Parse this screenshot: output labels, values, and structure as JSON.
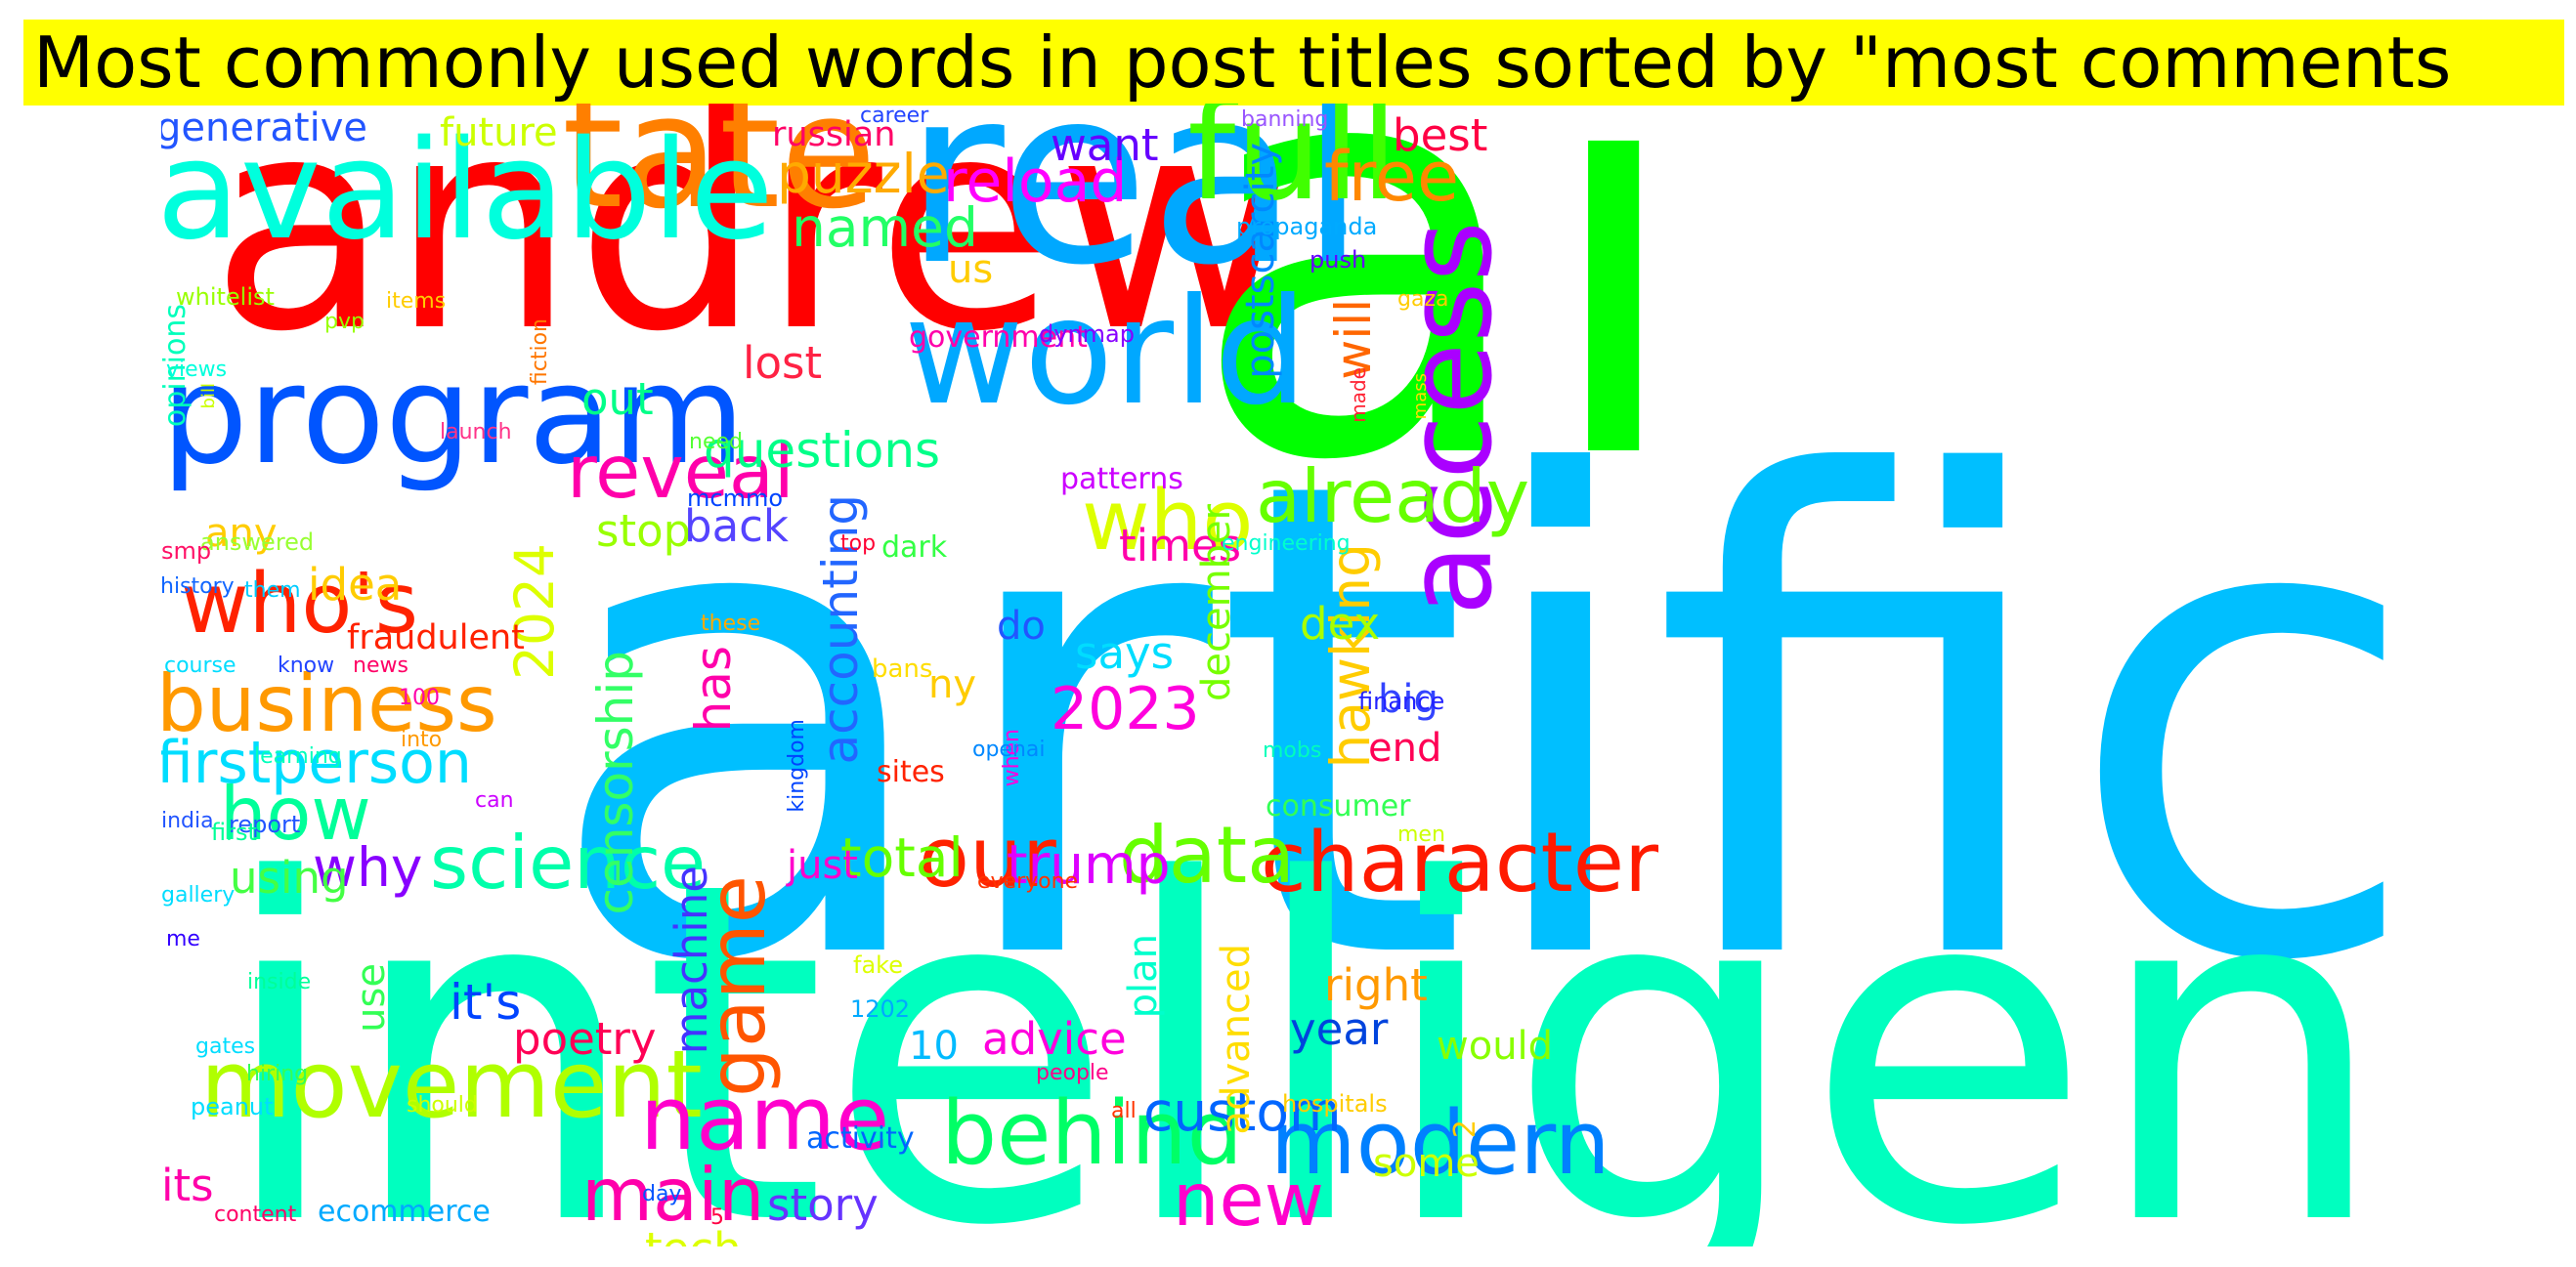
{
  "title": "Most commonly used words in post titles sorted by \"most comments",
  "colors": {
    "title_background": "#ffff00",
    "title_text": "#000000",
    "background": "#ffffff"
  },
  "words": [
    {
      "text": "artificial",
      "color": "#00bfff"
    },
    {
      "text": "intelligence",
      "color": "#00ffbf"
    },
    {
      "text": "andrew",
      "color": "#ff0000"
    },
    {
      "text": "ai",
      "color": "#00ff00"
    },
    {
      "text": "real",
      "color": "#00a8ff"
    },
    {
      "text": "tate",
      "color": "#ff7f00"
    },
    {
      "text": "world",
      "color": "#00a8ff"
    },
    {
      "text": "available",
      "color": "#00ffdd"
    },
    {
      "text": "full",
      "color": "#40ff00"
    },
    {
      "text": "program",
      "color": "#0055ff"
    },
    {
      "text": "access",
      "color": "#aa00ff"
    },
    {
      "text": "movement",
      "color": "#b0ff00"
    },
    {
      "text": "behind",
      "color": "#00ff66"
    },
    {
      "text": "modern",
      "color": "#0080ff"
    },
    {
      "text": "character",
      "color": "#ff1a00"
    },
    {
      "text": "name",
      "color": "#ff00cc"
    },
    {
      "text": "game",
      "color": "#ff5500"
    },
    {
      "text": "who's",
      "color": "#ff2200"
    },
    {
      "text": "business",
      "color": "#ff9900"
    },
    {
      "text": "science",
      "color": "#00ffaa"
    },
    {
      "text": "our",
      "color": "#ff2200"
    },
    {
      "text": "who",
      "color": "#ddff00"
    },
    {
      "text": "data",
      "color": "#66ff00"
    },
    {
      "text": "reveal",
      "color": "#ff00aa"
    },
    {
      "text": "how",
      "color": "#00ff99"
    },
    {
      "text": "firstperson",
      "color": "#00ddff"
    },
    {
      "text": "already",
      "color": "#66ff00"
    },
    {
      "text": "free",
      "color": "#ff8800"
    },
    {
      "text": "main",
      "color": "#ff00aa"
    },
    {
      "text": "new",
      "color": "#ff00cc"
    },
    {
      "text": "2023",
      "color": "#ff00dd"
    },
    {
      "text": "trump",
      "color": "#dd00ff"
    },
    {
      "text": "custom",
      "color": "#0066ff"
    },
    {
      "text": "total",
      "color": "#66ff00"
    },
    {
      "text": "reload",
      "color": "#ff00ff"
    },
    {
      "text": "puzzle",
      "color": "#ffaa00"
    },
    {
      "text": "named",
      "color": "#22ff66"
    },
    {
      "text": "questions",
      "color": "#00ff88"
    },
    {
      "text": "hawking",
      "color": "#ffcc00"
    },
    {
      "text": "2024",
      "color": "#ddff00"
    },
    {
      "text": "accounting",
      "color": "#2266ff"
    },
    {
      "text": "censorship",
      "color": "#33ff66"
    },
    {
      "text": "postscarcity",
      "color": "#0088ff"
    },
    {
      "text": "poetry",
      "color": "#ff0055"
    },
    {
      "text": "advice",
      "color": "#ff00dd"
    },
    {
      "text": "has",
      "color": "#ff00aa"
    },
    {
      "text": "stop",
      "color": "#99ff00"
    },
    {
      "text": "out",
      "color": "#00ff88"
    },
    {
      "text": "lost",
      "color": "#ff2244"
    },
    {
      "text": "back",
      "color": "#5544ff"
    },
    {
      "text": "any",
      "color": "#ffcc00"
    },
    {
      "text": "idea",
      "color": "#ffcc00"
    },
    {
      "text": "why",
      "color": "#8800ff"
    },
    {
      "text": "it's",
      "color": "#0044ff"
    },
    {
      "text": "using",
      "color": "#44ff44"
    },
    {
      "text": "its",
      "color": "#ff00aa"
    },
    {
      "text": "tech",
      "color": "#ddff00"
    },
    {
      "text": "story",
      "color": "#6633ff"
    },
    {
      "text": "year",
      "color": "#0044dd"
    },
    {
      "text": "right",
      "color": "#ff9900"
    },
    {
      "text": "some",
      "color": "#ccff00"
    },
    {
      "text": "would",
      "color": "#88ff00"
    },
    {
      "text": "end",
      "color": "#ff0055"
    },
    {
      "text": "big",
      "color": "#3344ff"
    },
    {
      "text": "dex",
      "color": "#aaff00"
    },
    {
      "text": "says",
      "color": "#00ddff"
    },
    {
      "text": "times",
      "color": "#ff00aa"
    },
    {
      "text": "want",
      "color": "#6600ff"
    },
    {
      "text": "best",
      "color": "#ff0044"
    },
    {
      "text": "will",
      "color": "#ff6600"
    },
    {
      "text": "december",
      "color": "#77ff00"
    },
    {
      "text": "advanced",
      "color": "#ffdd00"
    },
    {
      "text": "plan",
      "color": "#00ffcc"
    },
    {
      "text": "machine",
      "color": "#4433ff"
    },
    {
      "text": "just",
      "color": "#ff00cc"
    },
    {
      "text": "10",
      "color": "#00bbff"
    },
    {
      "text": "use",
      "color": "#33ff55"
    },
    {
      "text": "ny",
      "color": "#ffcc00"
    },
    {
      "text": "do",
      "color": "#2255ff"
    },
    {
      "text": "generative",
      "color": "#2255ff"
    },
    {
      "text": "future",
      "color": "#ccff00"
    },
    {
      "text": "russian",
      "color": "#ff0066"
    },
    {
      "text": "fraudulent",
      "color": "#ff2200"
    },
    {
      "text": "us",
      "color": "#ffcc00"
    },
    {
      "text": "government",
      "color": "#ff00aa"
    },
    {
      "text": "opinions",
      "color": "#00ffbb"
    },
    {
      "text": "ecommerce",
      "color": "#00aaff"
    },
    {
      "text": "activity",
      "color": "#0066ff"
    },
    {
      "text": "patterns",
      "color": "#cc00ff"
    },
    {
      "text": "consumer",
      "color": "#33ff55"
    },
    {
      "text": "2",
      "color": "#ffcc00"
    },
    {
      "text": "career",
      "color": "#2244ff"
    },
    {
      "text": "banning",
      "color": "#9955ff"
    },
    {
      "text": "propaganda",
      "color": "#00aaff"
    },
    {
      "text": "push",
      "color": "#6600ff"
    },
    {
      "text": "whitelist",
      "color": "#99ff00"
    },
    {
      "text": "items",
      "color": "#ffcc00"
    },
    {
      "text": "pvp",
      "color": "#99ff00"
    },
    {
      "text": "fiction",
      "color": "#ff7700"
    },
    {
      "text": "views",
      "color": "#00ffdd"
    },
    {
      "text": "bill",
      "color": "#ccff00"
    },
    {
      "text": "launch",
      "color": "#ff3388"
    },
    {
      "text": "need",
      "color": "#55ff33"
    },
    {
      "text": "mcmmo",
      "color": "#0044ff"
    },
    {
      "text": "dynmap",
      "color": "#8800ff"
    },
    {
      "text": "gaza",
      "color": "#ffcc00"
    },
    {
      "text": "made",
      "color": "#ff2233"
    },
    {
      "text": "mass",
      "color": "#ffdd00"
    },
    {
      "text": "answered",
      "color": "#99ff33"
    },
    {
      "text": "smp",
      "color": "#ff1166"
    },
    {
      "text": "top",
      "color": "#ff0033"
    },
    {
      "text": "dark",
      "color": "#33ff44"
    },
    {
      "text": "engineering",
      "color": "#00ffcc"
    },
    {
      "text": "history",
      "color": "#1166ff"
    },
    {
      "text": "them",
      "color": "#00ccff"
    },
    {
      "text": "these",
      "color": "#ffaa00"
    },
    {
      "text": "bans",
      "color": "#ffdd00"
    },
    {
      "text": "course",
      "color": "#00ddff"
    },
    {
      "text": "know",
      "color": "#2244ff"
    },
    {
      "text": "news",
      "color": "#ff0066"
    },
    {
      "text": "100",
      "color": "#ff00aa"
    },
    {
      "text": "into",
      "color": "#ff9900"
    },
    {
      "text": "sites",
      "color": "#ff2200"
    },
    {
      "text": "kingdom",
      "color": "#0044ff"
    },
    {
      "text": "when",
      "color": "#ff00dd"
    },
    {
      "text": "openai",
      "color": "#0088ff"
    },
    {
      "text": "finance",
      "color": "#2222ff"
    },
    {
      "text": "mobs",
      "color": "#00ffbb"
    },
    {
      "text": "learning",
      "color": "#00ffbb"
    },
    {
      "text": "india",
      "color": "#2255ff"
    },
    {
      "text": "report",
      "color": "#2255ff"
    },
    {
      "text": "first",
      "color": "#00ff99"
    },
    {
      "text": "can",
      "color": "#cc00ff"
    },
    {
      "text": "gallery",
      "color": "#00ddff"
    },
    {
      "text": "everyone",
      "color": "#ff3300"
    },
    {
      "text": "men",
      "color": "#ccff00"
    },
    {
      "text": "me",
      "color": "#3300ff"
    },
    {
      "text": "fake",
      "color": "#ddff00"
    },
    {
      "text": "inside",
      "color": "#00ff99"
    },
    {
      "text": "1202",
      "color": "#00aaff"
    },
    {
      "text": "gates",
      "color": "#00ddff"
    },
    {
      "text": "people",
      "color": "#ff0088"
    },
    {
      "text": "hiring",
      "color": "#33ff55"
    },
    {
      "text": "peanut",
      "color": "#00ddff"
    },
    {
      "text": "should",
      "color": "#ccff00"
    },
    {
      "text": "all",
      "color": "#ff3300"
    },
    {
      "text": "hospitals",
      "color": "#ffcc00"
    },
    {
      "text": "content",
      "color": "#ff0066"
    },
    {
      "text": "day",
      "color": "#0055ff"
    },
    {
      "text": "5",
      "color": "#ff0044"
    }
  ]
}
